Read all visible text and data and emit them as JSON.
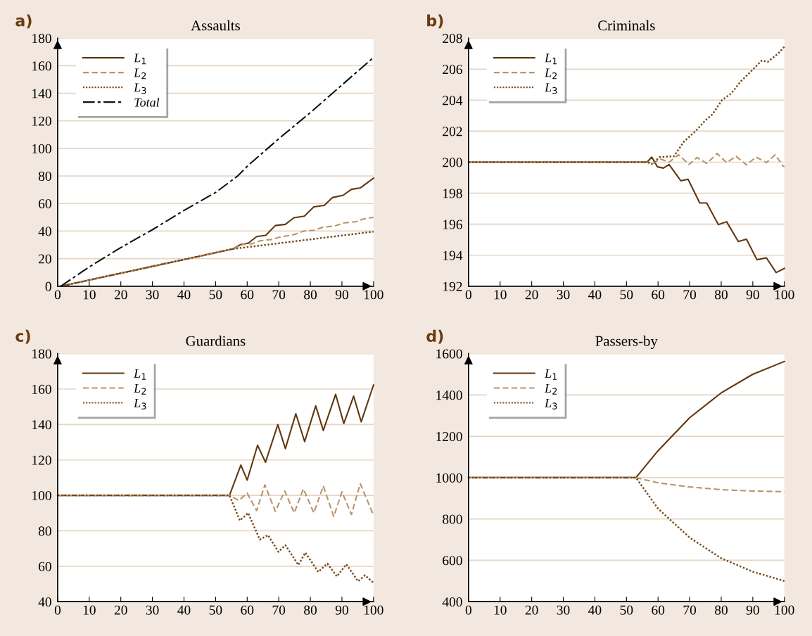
{
  "chart_data": [
    {
      "type": "line",
      "title": "Assaults",
      "annotations": [
        "a)"
      ],
      "xlim": [
        0,
        100
      ],
      "xticks": [
        0,
        10,
        20,
        30,
        40,
        50,
        60,
        70,
        80,
        90,
        100
      ],
      "ylim": [
        0,
        180
      ],
      "yticks": [
        0,
        20,
        40,
        60,
        80,
        100,
        120,
        140,
        160,
        180
      ],
      "grid": "y",
      "legend": "top left",
      "series": [
        {
          "name": "L$_{1}$",
          "color": "#603810",
          "line_style": "solid",
          "x": [
            1,
            55.6,
            57.8,
            60.4,
            63.0,
            65.9,
            68.9,
            72.1,
            74.8,
            78.1,
            81.1,
            84.4,
            87.0,
            90.4,
            93.0,
            95.9,
            100
          ],
          "values": [
            0,
            27.1,
            30.1,
            31.3,
            36.0,
            36.9,
            44.0,
            44.9,
            49.7,
            50.8,
            57.6,
            58.6,
            64.3,
            66.0,
            70.3,
            71.4,
            78.4
          ]
        },
        {
          "name": "L$_{2}$",
          "color": "#b8946a",
          "line_style": "dashed",
          "x": [
            1,
            55.6,
            58.9,
            61.5,
            64.1,
            67.8,
            70.7,
            74.4,
            78.1,
            81.1,
            84.0,
            87.7,
            90.7,
            94.4,
            96.6,
            100
          ],
          "values": [
            0,
            27.1,
            30.5,
            30.8,
            33.0,
            33.9,
            35.9,
            37.2,
            40.1,
            40.6,
            42.8,
            43.7,
            46.0,
            46.7,
            48.7,
            49.9
          ]
        },
        {
          "name": "L$_{3}$",
          "color": "#7a4c1e",
          "line_style": "dotted",
          "x": [
            1,
            55.6,
            100
          ],
          "values": [
            0,
            27.1,
            39.6
          ]
        },
        {
          "name": "Total",
          "color": "#111111",
          "line_style": "dashdot",
          "x": [
            1,
            10,
            20,
            30,
            40,
            50,
            57,
            60,
            70,
            80,
            90,
            100
          ],
          "values": [
            0,
            14,
            28,
            41,
            55,
            68,
            80,
            87,
            107,
            126,
            146,
            166
          ]
        }
      ]
    },
    {
      "type": "line",
      "title": "Criminals",
      "annotations": [
        "b)"
      ],
      "xlim": [
        0,
        100
      ],
      "xticks": [
        0,
        10,
        20,
        30,
        40,
        50,
        60,
        70,
        80,
        90,
        100
      ],
      "ylim": [
        192,
        208
      ],
      "yticks": [
        192,
        194,
        196,
        198,
        200,
        202,
        204,
        206,
        208
      ],
      "grid": "y",
      "legend": "top left",
      "series": [
        {
          "name": "L$_{1}$",
          "color": "#603810",
          "line_style": "solid",
          "x": [
            0,
            56.5,
            58.0,
            59.8,
            61.7,
            63.5,
            67.2,
            69.5,
            73.2,
            75.4,
            79.1,
            81.7,
            85.4,
            88.0,
            91.3,
            94.3,
            97.4,
            100
          ],
          "values": [
            200,
            200,
            200.33,
            199.7,
            199.62,
            199.85,
            198.8,
            198.9,
            197.37,
            197.37,
            195.97,
            196.16,
            194.88,
            195.03,
            193.71,
            193.83,
            192.88,
            193.15
          ]
        },
        {
          "name": "L$_{2}$",
          "color": "#b8946a",
          "line_style": "dashed",
          "x": [
            0,
            56.5,
            58.7,
            60.5,
            63.5,
            66.5,
            69.8,
            72.4,
            75.4,
            78.7,
            81.7,
            84.7,
            88.0,
            91.0,
            94.3,
            97.1,
            99.5,
            100
          ],
          "values": [
            200,
            200,
            199.92,
            200.23,
            200,
            200.48,
            199.85,
            200.3,
            199.92,
            200.56,
            199.97,
            200.38,
            199.82,
            200.33,
            199.97,
            200.48,
            199.77,
            199.7
          ]
        },
        {
          "name": "L$_{3}$",
          "color": "#7a4c1e",
          "line_style": "dotted",
          "x": [
            0,
            56.5,
            58.0,
            60.5,
            65.0,
            68.3,
            72.0,
            75.0,
            77.2,
            80.2,
            83.2,
            86.1,
            89.1,
            92.8,
            94.7,
            98.0,
            100
          ],
          "values": [
            200,
            200,
            199.88,
            200.33,
            200.38,
            201.35,
            202.03,
            202.7,
            203.08,
            203.99,
            204.44,
            205.19,
            205.79,
            206.55,
            206.47,
            207.0,
            207.45
          ]
        }
      ]
    },
    {
      "type": "line",
      "title": "Guardians",
      "annotations": [
        "c)"
      ],
      "xlim": [
        0,
        100
      ],
      "xticks": [
        0,
        10,
        20,
        30,
        40,
        50,
        60,
        70,
        80,
        90,
        100
      ],
      "ylim": [
        40,
        180
      ],
      "yticks": [
        40,
        60,
        80,
        100,
        120,
        140,
        160,
        180
      ],
      "grid": "y",
      "legend": "top left",
      "series": [
        {
          "name": "L$_{1}$",
          "color": "#603810",
          "line_style": "solid",
          "x": [
            0,
            54.4,
            58.0,
            60.0,
            63.3,
            65.8,
            69.7,
            72.1,
            75.4,
            78.2,
            81.7,
            84.1,
            88.0,
            90.6,
            93.7,
            96.1,
            100
          ],
          "values": [
            100,
            100,
            117.1,
            108.6,
            128.3,
            118.7,
            139.9,
            126.4,
            146.1,
            130.3,
            150.5,
            136.6,
            157.0,
            140.6,
            156.0,
            141.5,
            162.3
          ]
        },
        {
          "name": "L$_{2}$",
          "color": "#b8946a",
          "line_style": "dashed",
          "x": [
            0,
            54.4,
            57.4,
            60.0,
            63.0,
            65.6,
            68.9,
            71.9,
            74.9,
            77.8,
            81.1,
            84.1,
            87.4,
            90.0,
            93.0,
            95.8,
            100
          ],
          "values": [
            100,
            100,
            97.1,
            101.3,
            91.4,
            105.9,
            91.0,
            102.4,
            90.1,
            103.7,
            90.1,
            105.3,
            88.1,
            102.0,
            89.2,
            106.6,
            88.8
          ]
        },
        {
          "name": "L$_{3}$",
          "color": "#7a4c1e",
          "line_style": "dotted",
          "x": [
            0,
            54.4,
            57.7,
            60.3,
            64.0,
            66.6,
            69.9,
            72.1,
            76.2,
            78.4,
            82.5,
            85.4,
            88.4,
            91.4,
            95.1,
            97.3,
            100
          ],
          "values": [
            100,
            100,
            85.8,
            90.1,
            75.0,
            77.6,
            68.1,
            71.9,
            60.7,
            67.7,
            56.8,
            61.5,
            54.2,
            61.1,
            51.5,
            54.9,
            50.6
          ]
        }
      ]
    },
    {
      "type": "line",
      "title": "Passers-by",
      "annotations": [
        "d)"
      ],
      "xlim": [
        0,
        100
      ],
      "xticks": [
        0,
        10,
        20,
        30,
        40,
        50,
        60,
        70,
        80,
        90,
        100
      ],
      "ylim": [
        400,
        1600
      ],
      "yticks": [
        400,
        600,
        800,
        1000,
        1200,
        1400,
        1600
      ],
      "grid": "y",
      "legend": "top left",
      "series": [
        {
          "name": "L$_{1}$",
          "color": "#603810",
          "line_style": "solid",
          "x": [
            0,
            53,
            60,
            70,
            80,
            90,
            100
          ],
          "values": [
            1000,
            1000,
            1130,
            1290,
            1410,
            1500,
            1562
          ]
        },
        {
          "name": "L$_{2}$",
          "color": "#b8946a",
          "line_style": "dashed",
          "x": [
            0,
            53,
            60,
            70,
            80,
            90,
            100
          ],
          "values": [
            1000,
            1000,
            975,
            955,
            942,
            935,
            932
          ]
        },
        {
          "name": "L$_{3}$",
          "color": "#7a4c1e",
          "line_style": "dotted",
          "x": [
            0,
            53,
            60,
            70,
            80,
            90,
            100
          ],
          "values": [
            1000,
            1000,
            850,
            710,
            610,
            545,
            500
          ]
        }
      ]
    }
  ]
}
